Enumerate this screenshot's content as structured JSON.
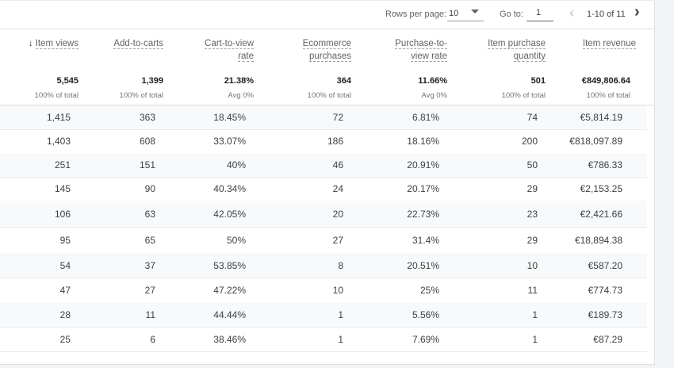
{
  "pager": {
    "rows_per_page_label": "Rows per page:",
    "rows_per_page_value": "10",
    "goto_label": "Go to:",
    "goto_value": "1",
    "range": "1-10 of 11",
    "prev_icon": "chevron-left-icon",
    "next_icon": "chevron-right-icon"
  },
  "columns": [
    {
      "key": "item_views",
      "label_lines": [
        "Item views"
      ],
      "sorted": true,
      "sort_icon": "arrow-down-icon",
      "total": "5,545",
      "sub": "100% of total"
    },
    {
      "key": "add_to_carts",
      "label_lines": [
        "Add-to-carts"
      ],
      "total": "1,399",
      "sub": "100% of total"
    },
    {
      "key": "cart_to_view_rate",
      "label_lines": [
        "Cart-to-view",
        "rate"
      ],
      "total": "21.38%",
      "sub": "Avg 0%"
    },
    {
      "key": "ecommerce_purchases",
      "label_lines": [
        "Ecommerce",
        "purchases"
      ],
      "total": "364",
      "sub": "100% of total"
    },
    {
      "key": "purchase_to_view_rate",
      "label_lines": [
        "Purchase-to-",
        "view rate"
      ],
      "total": "11.66%",
      "sub": "Avg 0%"
    },
    {
      "key": "item_purchase_quantity",
      "label_lines": [
        "Item purchase",
        "quantity"
      ],
      "total": "501",
      "sub": "100% of total"
    },
    {
      "key": "item_revenue",
      "label_lines": [
        "Item revenue"
      ],
      "total": "€849,806.64",
      "sub": "100% of total"
    }
  ],
  "rows": [
    [
      "1,415",
      "363",
      "18.45%",
      "72",
      "6.81%",
      "74",
      "€5,814.19"
    ],
    [
      "1,403",
      "608",
      "33.07%",
      "186",
      "18.16%",
      "200",
      "€818,097.89"
    ],
    [
      "251",
      "151",
      "40%",
      "46",
      "20.91%",
      "50",
      "€786.33"
    ],
    [
      "145",
      "90",
      "40.34%",
      "24",
      "20.17%",
      "29",
      "€2,153.25"
    ],
    [
      "106",
      "63",
      "42.05%",
      "20",
      "22.73%",
      "23",
      "€2,421.66"
    ],
    [
      "95",
      "65",
      "50%",
      "27",
      "31.4%",
      "29",
      "€18,894.38"
    ],
    [
      "54",
      "37",
      "53.85%",
      "8",
      "20.51%",
      "10",
      "€587.20"
    ],
    [
      "47",
      "27",
      "47.22%",
      "10",
      "25%",
      "11",
      "€774.73"
    ],
    [
      "28",
      "11",
      "44.44%",
      "1",
      "5.56%",
      "1",
      "€189.73"
    ],
    [
      "25",
      "6",
      "38.46%",
      "1",
      "7.69%",
      "1",
      "€87.29"
    ]
  ]
}
